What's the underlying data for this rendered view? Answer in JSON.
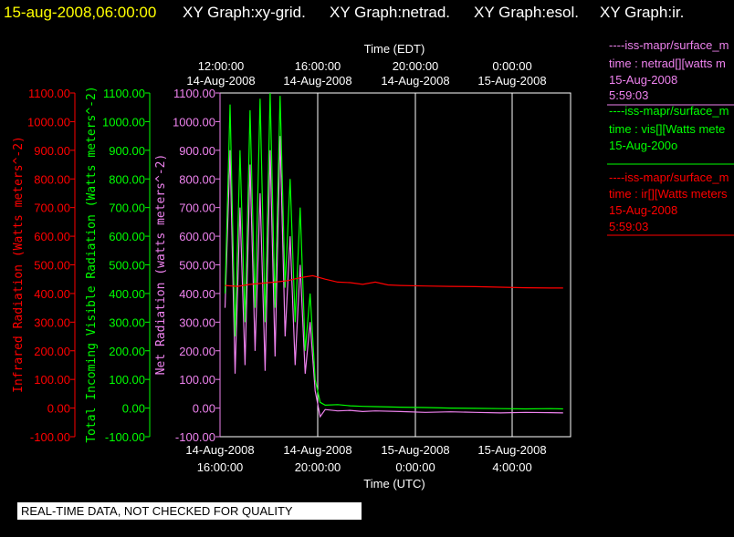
{
  "header": {
    "timestamp": "15-aug-2008,06:00:00",
    "titles": [
      "XY Graph:xy-grid.",
      "XY Graph:netrad.",
      "XY Graph:esol.",
      "XY Graph:ir."
    ]
  },
  "top_axis": {
    "title": "Time (EDT)",
    "ticks": [
      {
        "time": "12:00:00",
        "date": "14-Aug-2008"
      },
      {
        "time": "16:00:00",
        "date": "14-Aug-2008"
      },
      {
        "time": "20:00:00",
        "date": "14-Aug-2008"
      },
      {
        "time": "0:00:00",
        "date": "15-Aug-2008"
      }
    ]
  },
  "bottom_axis": {
    "title": "Time (UTC)",
    "ticks": [
      {
        "date": "14-Aug-2008",
        "time": "16:00:00"
      },
      {
        "date": "14-Aug-2008",
        "time": "20:00:00"
      },
      {
        "date": "15-Aug-2008",
        "time": "0:00:00"
      },
      {
        "date": "15-Aug-2008",
        "time": "4:00:00"
      }
    ]
  },
  "y_axes": {
    "ticks": [
      "1100.00",
      "1000.00",
      "900.00",
      "800.00",
      "700.00",
      "600.00",
      "500.00",
      "400.00",
      "300.00",
      "200.00",
      "100.00",
      "0.00",
      "-100.00"
    ],
    "ir_title": "Infrared Radiation (Watts meters^-2)",
    "vis_title": "Total Incoming Visible Radiation (Watts meters^-2)",
    "net_title": "Net Radiation (watts meters^-2)"
  },
  "legend": [
    {
      "line1": "----iss-mapr/surface_m",
      "line2": "time : netrad[][watts m",
      "line3": "15-Aug-2008",
      "line4": "5:59:03"
    },
    {
      "line1": "----iss-mapr/surface_m",
      "line2": "time : vis[][Watts mete",
      "line3": "15-Aug-200o",
      "line4": ""
    },
    {
      "line1": "----iss-mapr/surface_m",
      "line2": "time : ir[][Watts meters",
      "line3": "15-Aug-2008",
      "line4": "5:59:03"
    }
  ],
  "banner": "REAL-TIME DATA, NOT CHECKED FOR QUALITY",
  "colors": {
    "ir": "#ff0000",
    "vis": "#00ff00",
    "net": "#ee82ee",
    "grid": "#ffffff",
    "axis": "#ffffff",
    "header_time": "#ffff00"
  },
  "chart_data": {
    "type": "line",
    "x_unit": "hours UTC since 14-Aug-2008 16:00",
    "xlim": [
      -0.2,
      13.8
    ],
    "ylim": [
      -100,
      1100
    ],
    "grid": true,
    "legend_position": "right",
    "series": [
      {
        "name": "netrad",
        "x": [
          0.0,
          0.2,
          0.4,
          0.6,
          0.8,
          1.0,
          1.2,
          1.4,
          1.6,
          1.8,
          2.0,
          2.2,
          2.4,
          2.6,
          2.8,
          3.0,
          3.2,
          3.4,
          3.6,
          3.8,
          4.0,
          4.5,
          5.0,
          5.5,
          6.0,
          7.0,
          8.0,
          9.0,
          10.0,
          11.0,
          12.0,
          13.0,
          13.5
        ],
        "y": [
          350,
          900,
          120,
          700,
          150,
          850,
          200,
          750,
          130,
          900,
          180,
          950,
          250,
          600,
          150,
          500,
          120,
          300,
          60,
          -30,
          -5,
          -10,
          -8,
          -12,
          -10,
          -12,
          -15,
          -13,
          -15,
          -17,
          -15,
          -16,
          -17
        ]
      },
      {
        "name": "vis",
        "x": [
          0.0,
          0.2,
          0.4,
          0.6,
          0.8,
          1.0,
          1.2,
          1.4,
          1.6,
          1.8,
          2.0,
          2.2,
          2.4,
          2.6,
          2.8,
          3.0,
          3.2,
          3.4,
          3.6,
          3.8,
          4.0,
          4.5,
          5.0,
          5.5,
          6.0,
          7.0,
          8.0,
          9.0,
          10.0,
          11.0,
          12.0,
          13.0,
          13.5
        ],
        "y": [
          400,
          1060,
          250,
          900,
          300,
          1040,
          350,
          1080,
          300,
          1100,
          350,
          1090,
          420,
          800,
          300,
          700,
          200,
          400,
          100,
          20,
          10,
          12,
          8,
          6,
          5,
          3,
          2,
          0,
          -1,
          -2,
          -3,
          -2,
          -3
        ]
      },
      {
        "name": "ir",
        "x": [
          0.0,
          0.5,
          1.0,
          1.5,
          2.0,
          2.5,
          3.0,
          3.5,
          4.0,
          4.5,
          5.0,
          5.5,
          6.0,
          6.5,
          7.0,
          8.0,
          9.0,
          10.0,
          11.0,
          12.0,
          13.0,
          13.5
        ],
        "y": [
          428,
          425,
          432,
          436,
          440,
          445,
          455,
          462,
          450,
          440,
          438,
          432,
          440,
          430,
          428,
          426,
          425,
          424,
          422,
          420,
          419,
          419
        ]
      }
    ]
  }
}
